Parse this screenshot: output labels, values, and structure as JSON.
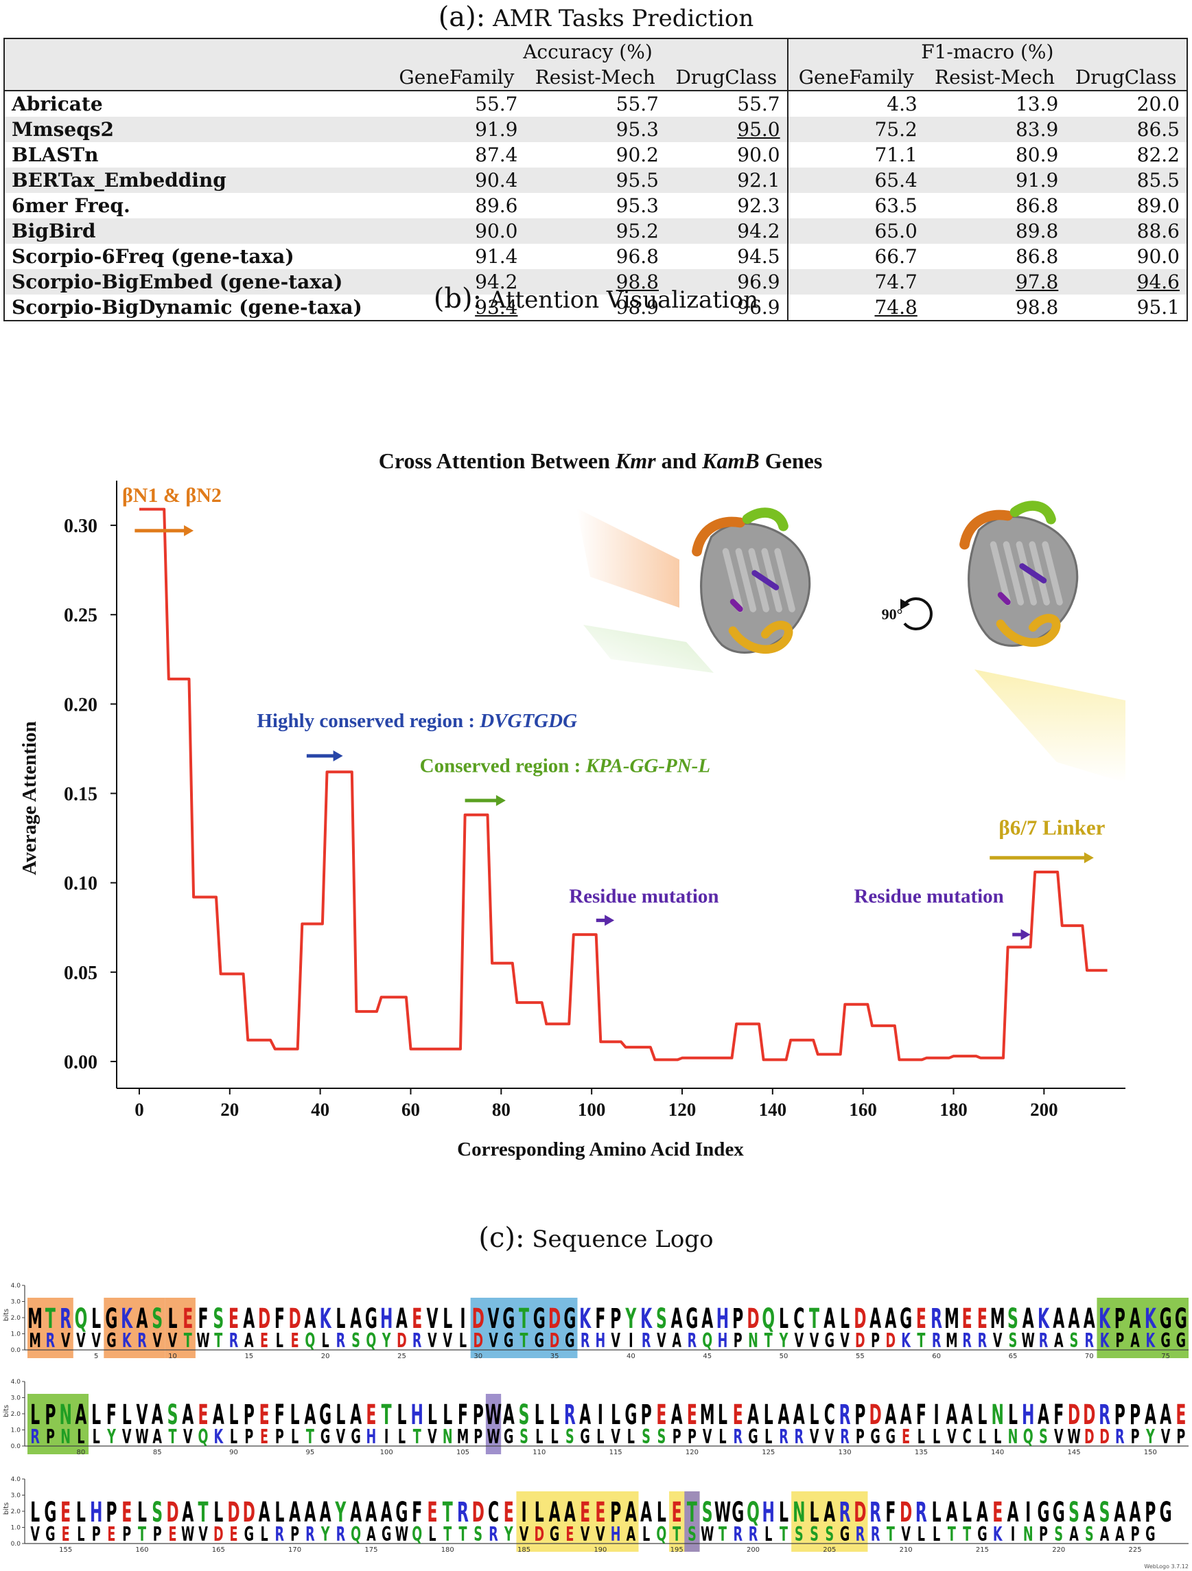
{
  "panels": {
    "a_letter": "(a):",
    "a_title": "AMR Tasks Prediction",
    "b_letter": "(b):",
    "b_title": "Attention Visualization",
    "c_letter": "(c):",
    "c_title": "Sequence Logo"
  },
  "table": {
    "groups": [
      "Accuracy (%)",
      "F1-macro (%)"
    ],
    "columns": [
      "GeneFamily",
      "Resist-Mech",
      "DrugClass",
      "GeneFamily",
      "Resist-Mech",
      "DrugClass"
    ],
    "rows": [
      {
        "method": "Abricate",
        "values": [
          "55.7",
          "55.7",
          "55.7",
          "4.3",
          "13.9",
          "20.0"
        ],
        "bold": [],
        "underline": []
      },
      {
        "method": "Mmseqs2",
        "values": [
          "91.9",
          "95.3",
          "95.0",
          "75.2",
          "83.9",
          "86.5"
        ],
        "bold": [
          3
        ],
        "underline": [
          2
        ]
      },
      {
        "method": "BLASTn",
        "values": [
          "87.4",
          "90.2",
          "90.0",
          "71.1",
          "80.9",
          "82.2"
        ],
        "bold": [],
        "underline": []
      },
      {
        "method": "BERTax_Embedding",
        "values": [
          "90.4",
          "95.5",
          "92.1",
          "65.4",
          "91.9",
          "85.5"
        ],
        "bold": [],
        "underline": []
      },
      {
        "method": "6mer Freq.",
        "values": [
          "89.6",
          "95.3",
          "92.3",
          "63.5",
          "86.8",
          "89.0"
        ],
        "bold": [],
        "underline": []
      },
      {
        "method": "BigBird",
        "values": [
          "90.0",
          "95.2",
          "94.2",
          "65.0",
          "89.8",
          "88.6"
        ],
        "bold": [],
        "underline": []
      },
      {
        "method": "Scorpio-6Freq (gene-taxa)",
        "values": [
          "91.4",
          "96.8",
          "94.5",
          "66.7",
          "86.8",
          "90.0"
        ],
        "bold": [],
        "underline": []
      },
      {
        "method": "Scorpio-BigEmbed (gene-taxa)",
        "values": [
          "94.2",
          "98.8",
          "96.9",
          "74.7",
          "97.8",
          "94.6"
        ],
        "bold": [
          0,
          2
        ],
        "underline": [
          1,
          4,
          5
        ]
      },
      {
        "method": "Scorpio-BigDynamic (gene-taxa)",
        "values": [
          "93.4",
          "98.9",
          "96.9",
          "74.8",
          "98.8",
          "95.1"
        ],
        "bold": [
          1,
          2,
          4,
          5
        ],
        "underline": [
          0,
          3
        ]
      }
    ]
  },
  "chart_data": {
    "type": "line",
    "title_parts": [
      "Cross Attention Between ",
      "Kmr",
      " and ",
      "KamB",
      " Genes"
    ],
    "xlabel": "Corresponding Amino Acid Index",
    "ylabel": "Average Attention",
    "xlim": [
      -5,
      218
    ],
    "ylim": [
      -0.015,
      0.325
    ],
    "xticks": [
      0,
      20,
      40,
      60,
      80,
      100,
      120,
      140,
      160,
      180,
      200
    ],
    "yticks": [
      "0.00",
      "0.05",
      "0.10",
      "0.15",
      "0.20",
      "0.25",
      "0.30"
    ],
    "line_color": "#e8372a",
    "series": [
      {
        "x": [
          0,
          5.5,
          6.5,
          11,
          12,
          17,
          18,
          23,
          24,
          29,
          30,
          35,
          36,
          40.5,
          41.5,
          47,
          48,
          52.5,
          53.5,
          59,
          60,
          65,
          66,
          71,
          72,
          77,
          78,
          82.5,
          83.5,
          89,
          90,
          95,
          96,
          101,
          102,
          106.5,
          107.5,
          113,
          114,
          119,
          120,
          125,
          126,
          131,
          132,
          137,
          138,
          143,
          144,
          149,
          150,
          155,
          156,
          161,
          162,
          167,
          168,
          173,
          174,
          179,
          180,
          185,
          186,
          191,
          192,
          197,
          198,
          203,
          204,
          208.5,
          209.5,
          214
        ],
        "y": [
          0.309,
          0.309,
          0.214,
          0.214,
          0.092,
          0.092,
          0.049,
          0.049,
          0.012,
          0.012,
          0.007,
          0.007,
          0.077,
          0.077,
          0.162,
          0.162,
          0.028,
          0.028,
          0.036,
          0.036,
          0.007,
          0.007,
          0.007,
          0.007,
          0.138,
          0.138,
          0.055,
          0.055,
          0.033,
          0.033,
          0.021,
          0.021,
          0.071,
          0.071,
          0.011,
          0.011,
          0.008,
          0.008,
          0.001,
          0.001,
          0.002,
          0.002,
          0.002,
          0.002,
          0.021,
          0.021,
          0.001,
          0.001,
          0.012,
          0.012,
          0.004,
          0.004,
          0.032,
          0.032,
          0.02,
          0.02,
          0.001,
          0.001,
          0.002,
          0.002,
          0.003,
          0.003,
          0.002,
          0.002,
          0.064,
          0.064,
          0.106,
          0.106,
          0.076,
          0.076,
          0.051,
          0.051
        ]
      }
    ],
    "annotations": [
      {
        "id": "bn",
        "parts": [
          {
            "t": "βN1 & βN2",
            "i": false
          }
        ],
        "color": "#e07b1a"
      },
      {
        "id": "hc",
        "parts": [
          {
            "t": "Highly conserved region : ",
            "i": false
          },
          {
            "t": "DVGTGDG",
            "i": true
          }
        ],
        "color": "#2846a8"
      },
      {
        "id": "cr",
        "parts": [
          {
            "t": "Conserved region : ",
            "i": false
          },
          {
            "t": "KPA-GG-PN-L",
            "i": true
          }
        ],
        "color": "#5aa021"
      },
      {
        "id": "rm1",
        "parts": [
          {
            "t": "Residue mutation",
            "i": false
          }
        ],
        "color": "#5a28a8"
      },
      {
        "id": "rm2",
        "parts": [
          {
            "t": "Residue mutation",
            "i": false
          }
        ],
        "color": "#5a28a8"
      },
      {
        "id": "b67",
        "parts": [
          {
            "t": "β6/7 Linker",
            "i": false
          }
        ],
        "color": "#c8a51a"
      }
    ],
    "rotation_label": "90°"
  },
  "logo": {
    "y_axis_label": "bits",
    "y_ticks": [
      "4.0",
      "3.0",
      "2.0",
      "1.0",
      "0.0"
    ],
    "colors": {
      "hydrophobic": "#000000",
      "polar": "#1f9e24",
      "basic": "#2a2fd0",
      "acidic": "#d6231b",
      "neutral": "#8a2be2"
    },
    "highlight_colors": {
      "orange": "#f4a261",
      "blue": "#6bb5de",
      "green": "#7ec23d",
      "purple": "#8e7cc3",
      "yellow": "#f7e36b"
    },
    "rows": [
      {
        "top": "MTRQLGKASLEFSEADFDAKLAGHAEVLIDVGTGDGKFPYKSAGAHPDQLCTALDAAGERMEEMSAKAAAKPAKGG",
        "bottom": "MRVVVGKRVVTWTRAELEQLRSQYDRVVLDVGTGDGRHVIRVARQHPNTYVVGVDPDKTRMRRVSWRASRKPAKGG",
        "start": 1,
        "ticks": [
          "5",
          "10",
          "15",
          "20",
          "25",
          "30",
          "35",
          "40",
          "45",
          "50",
          "55",
          "60",
          "65",
          "70",
          "75"
        ]
      },
      {
        "top": "LPNALFLVASAEALPEFLAGLAETLHLLFPWASLLRAILGPEAEMLEALAALCRPDAAFIAALNLHAFDDRPPAAE",
        "bottom": "RPNLLYVWATVQKLPEPLTGVGHILTVNMPWGSLLSGLVLSSPPVLRGLRRVVRPGGELLVCLLNQSVWDDRPYVPR",
        "start": 77,
        "ticks": [
          "80",
          "85",
          "90",
          "95",
          "100",
          "105",
          "110",
          "115",
          "120",
          "125",
          "130",
          "135",
          "140",
          "145",
          "150"
        ]
      },
      {
        "top": "LGELHPELSDATLDDALAAAYAAAGFETRDCEILAAEEPAALETSWGQHLNLARDRFDRLALAEAIGGSASAAPG",
        "bottom": "VGELPEPTPEWVDEGLRPRYRQAGWQLTTSRYVDGEVVHALQTSWTRRLTSSSGRRTVLLTTGKINPSASAAPG",
        "start": 153,
        "ticks": [
          "155",
          "160",
          "165",
          "170",
          "175",
          "180",
          "185",
          "190",
          "195",
          "200",
          "205",
          "210",
          "215",
          "220",
          "225"
        ]
      }
    ],
    "version": "WebLogo 3.7.12"
  }
}
